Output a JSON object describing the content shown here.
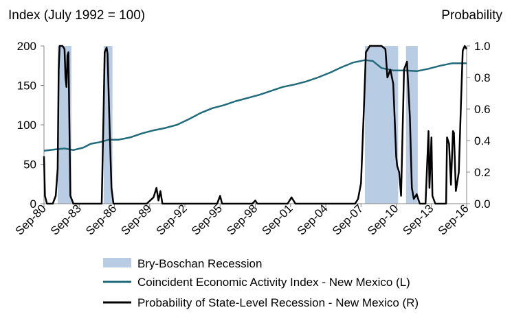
{
  "chart_data": {
    "type": "line",
    "y_left_title": "Index (July 1992 = 100)",
    "y_right_title": "Probability",
    "x_ticks": [
      "Sep-80",
      "Sep-83",
      "Sep-86",
      "Sep-89",
      "Sep-92",
      "Sep-95",
      "Sep-98",
      "Sep-01",
      "Sep-04",
      "Sep-07",
      "Sep-10",
      "Sep-13",
      "Sep-16"
    ],
    "x_range": [
      "1980-09",
      "2016-09"
    ],
    "y_left_range": [
      0,
      200
    ],
    "y_left_ticks": [
      "0",
      "50",
      "100",
      "150",
      "200"
    ],
    "y_right_range": [
      0,
      1
    ],
    "y_right_ticks": [
      "0.0",
      "0.2",
      "0.4",
      "0.6",
      "0.8",
      "1.0"
    ],
    "grid": false,
    "legend_position": "bottom",
    "recessions": [
      {
        "start": "1981-11",
        "end": "1983-01"
      },
      {
        "start": "1985-10",
        "end": "1986-07"
      },
      {
        "start": "2008-01",
        "end": "2010-11"
      },
      {
        "start": "2011-07",
        "end": "2012-07"
      }
    ],
    "series": [
      {
        "name": "Bry-Boschan Recession",
        "axis": "none",
        "color": "#b8cce4",
        "style": "shaded"
      },
      {
        "name": "Coincident Economic Activity Index - New Mexico (L)",
        "axis": "left",
        "color": "#1f6b7a",
        "points": [
          [
            "1980-09",
            67
          ],
          [
            "1981-09",
            69
          ],
          [
            "1982-06",
            70
          ],
          [
            "1983-03",
            68
          ],
          [
            "1984-01",
            71
          ],
          [
            "1984-09",
            76
          ],
          [
            "1985-06",
            78
          ],
          [
            "1986-03",
            81
          ],
          [
            "1987-01",
            81
          ],
          [
            "1988-01",
            84
          ],
          [
            "1989-01",
            89
          ],
          [
            "1990-01",
            93
          ],
          [
            "1991-01",
            96
          ],
          [
            "1992-01",
            100
          ],
          [
            "1993-01",
            107
          ],
          [
            "1994-01",
            115
          ],
          [
            "1995-01",
            121
          ],
          [
            "1996-01",
            125
          ],
          [
            "1997-01",
            130
          ],
          [
            "1998-01",
            134
          ],
          [
            "1999-01",
            138
          ],
          [
            "2000-01",
            143
          ],
          [
            "2001-01",
            148
          ],
          [
            "2002-01",
            151
          ],
          [
            "2003-01",
            155
          ],
          [
            "2004-01",
            160
          ],
          [
            "2005-01",
            166
          ],
          [
            "2006-01",
            173
          ],
          [
            "2007-01",
            179
          ],
          [
            "2008-01",
            182
          ],
          [
            "2008-09",
            181
          ],
          [
            "2009-06",
            172
          ],
          [
            "2010-06",
            169
          ],
          [
            "2011-06",
            169
          ],
          [
            "2012-06",
            168
          ],
          [
            "2013-06",
            171
          ],
          [
            "2014-06",
            175
          ],
          [
            "2015-06",
            178
          ],
          [
            "2016-09",
            178
          ]
        ]
      },
      {
        "name": "Probability of State-Level Recession - New Mexico (R)",
        "axis": "right",
        "color": "#000000",
        "points": [
          [
            "1980-09",
            0.3
          ],
          [
            "1980-10",
            0.05
          ],
          [
            "1980-12",
            0.0
          ],
          [
            "1981-06",
            0.0
          ],
          [
            "1981-09",
            0.05
          ],
          [
            "1981-11",
            0.22
          ],
          [
            "1981-12",
            0.85
          ],
          [
            "1982-01",
            1.0
          ],
          [
            "1982-04",
            1.0
          ],
          [
            "1982-06",
            0.98
          ],
          [
            "1982-07",
            0.8
          ],
          [
            "1982-08",
            0.74
          ],
          [
            "1982-09",
            0.94
          ],
          [
            "1982-10",
            0.96
          ],
          [
            "1982-11",
            0.5
          ],
          [
            "1982-12",
            0.05
          ],
          [
            "1983-03",
            0.0
          ],
          [
            "1985-08",
            0.0
          ],
          [
            "1985-10",
            0.6
          ],
          [
            "1985-11",
            0.96
          ],
          [
            "1986-01",
            0.99
          ],
          [
            "1986-02",
            0.95
          ],
          [
            "1986-04",
            0.5
          ],
          [
            "1986-05",
            0.3
          ],
          [
            "1986-06",
            0.1
          ],
          [
            "1986-08",
            0.0
          ],
          [
            "1989-06",
            0.0
          ],
          [
            "1990-01",
            0.04
          ],
          [
            "1990-04",
            0.1
          ],
          [
            "1990-06",
            0.02
          ],
          [
            "1990-08",
            0.08
          ],
          [
            "1990-10",
            0.0
          ],
          [
            "1991-06",
            0.0
          ],
          [
            "1995-06",
            0.0
          ],
          [
            "1995-09",
            0.05
          ],
          [
            "1995-11",
            0.0
          ],
          [
            "1998-06",
            0.0
          ],
          [
            "1998-09",
            0.02
          ],
          [
            "1998-11",
            0.0
          ],
          [
            "2001-06",
            0.0
          ],
          [
            "2001-10",
            0.04
          ],
          [
            "2002-02",
            0.0
          ],
          [
            "2007-03",
            0.0
          ],
          [
            "2007-06",
            0.03
          ],
          [
            "2007-09",
            0.13
          ],
          [
            "2007-12",
            0.6
          ],
          [
            "2008-02",
            0.96
          ],
          [
            "2008-06",
            1.0
          ],
          [
            "2009-06",
            1.0
          ],
          [
            "2009-10",
            0.98
          ],
          [
            "2009-12",
            0.8
          ],
          [
            "2010-03",
            0.85
          ],
          [
            "2010-06",
            0.76
          ],
          [
            "2010-09",
            0.3
          ],
          [
            "2010-10",
            0.24
          ],
          [
            "2010-12",
            0.2
          ],
          [
            "2011-02",
            0.05
          ],
          [
            "2011-05",
            0.85
          ],
          [
            "2011-08",
            0.9
          ],
          [
            "2011-11",
            0.55
          ],
          [
            "2012-01",
            0.1
          ],
          [
            "2012-03",
            0.03
          ],
          [
            "2012-06",
            0.06
          ],
          [
            "2012-09",
            0.0
          ],
          [
            "2013-03",
            0.0
          ],
          [
            "2013-06",
            0.46
          ],
          [
            "2013-07",
            0.1
          ],
          [
            "2013-09",
            0.42
          ],
          [
            "2013-10",
            0.05
          ],
          [
            "2014-01",
            0.0
          ],
          [
            "2014-12",
            0.0
          ],
          [
            "2015-01",
            0.42
          ],
          [
            "2015-03",
            0.38
          ],
          [
            "2015-05",
            0.12
          ],
          [
            "2015-07",
            0.46
          ],
          [
            "2015-08",
            0.45
          ],
          [
            "2015-10",
            0.08
          ],
          [
            "2016-01",
            0.2
          ],
          [
            "2016-03",
            0.6
          ],
          [
            "2016-05",
            0.97
          ],
          [
            "2016-07",
            1.0
          ],
          [
            "2016-09",
            0.98
          ]
        ]
      }
    ]
  }
}
